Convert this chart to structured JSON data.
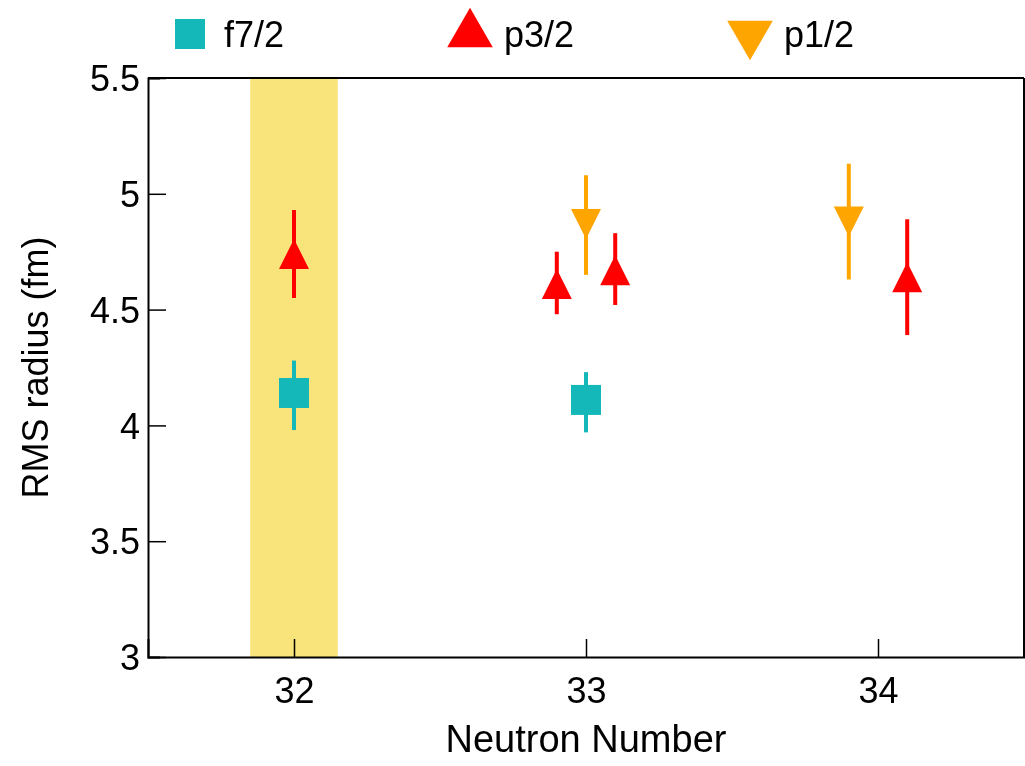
{
  "chart_data": {
    "type": "scatter",
    "xlabel": "Neutron Number",
    "ylabel": "RMS radius (fm)",
    "xlim": [
      31.5,
      34.5
    ],
    "xticks": [
      32,
      33,
      34
    ],
    "ylim": [
      3,
      5.5
    ],
    "yticks": [
      3,
      3.5,
      4,
      4.5,
      5,
      5.5
    ],
    "legend": "top",
    "grid": false,
    "bands": [
      {
        "axis": "x",
        "from": 31.85,
        "to": 32.15,
        "color": "#f8e47a"
      }
    ],
    "series": [
      {
        "name": "f7/2",
        "color": "#14b8b8",
        "marker": "square",
        "x": [
          32,
          33
        ],
        "values": [
          4.14,
          4.11
        ],
        "errors": [
          [
            3.98,
            4.28
          ],
          [
            3.97,
            4.23
          ]
        ]
      },
      {
        "name": "p3/2",
        "color": "#ff0000",
        "marker": "triangle",
        "x": [
          32,
          32.9,
          33.1,
          34.1
        ],
        "values": [
          4.74,
          4.61,
          4.67,
          4.64
        ],
        "errors": [
          [
            4.55,
            4.93
          ],
          [
            4.48,
            4.75
          ],
          [
            4.52,
            4.83
          ],
          [
            4.39,
            4.89
          ]
        ]
      },
      {
        "name": "p1/2",
        "color": "#ffa500",
        "marker": "triangle-down",
        "x": [
          33,
          33.9
        ],
        "values": [
          4.87,
          4.88
        ],
        "errors": [
          [
            4.65,
            5.08
          ],
          [
            4.63,
            5.13
          ]
        ]
      }
    ]
  }
}
